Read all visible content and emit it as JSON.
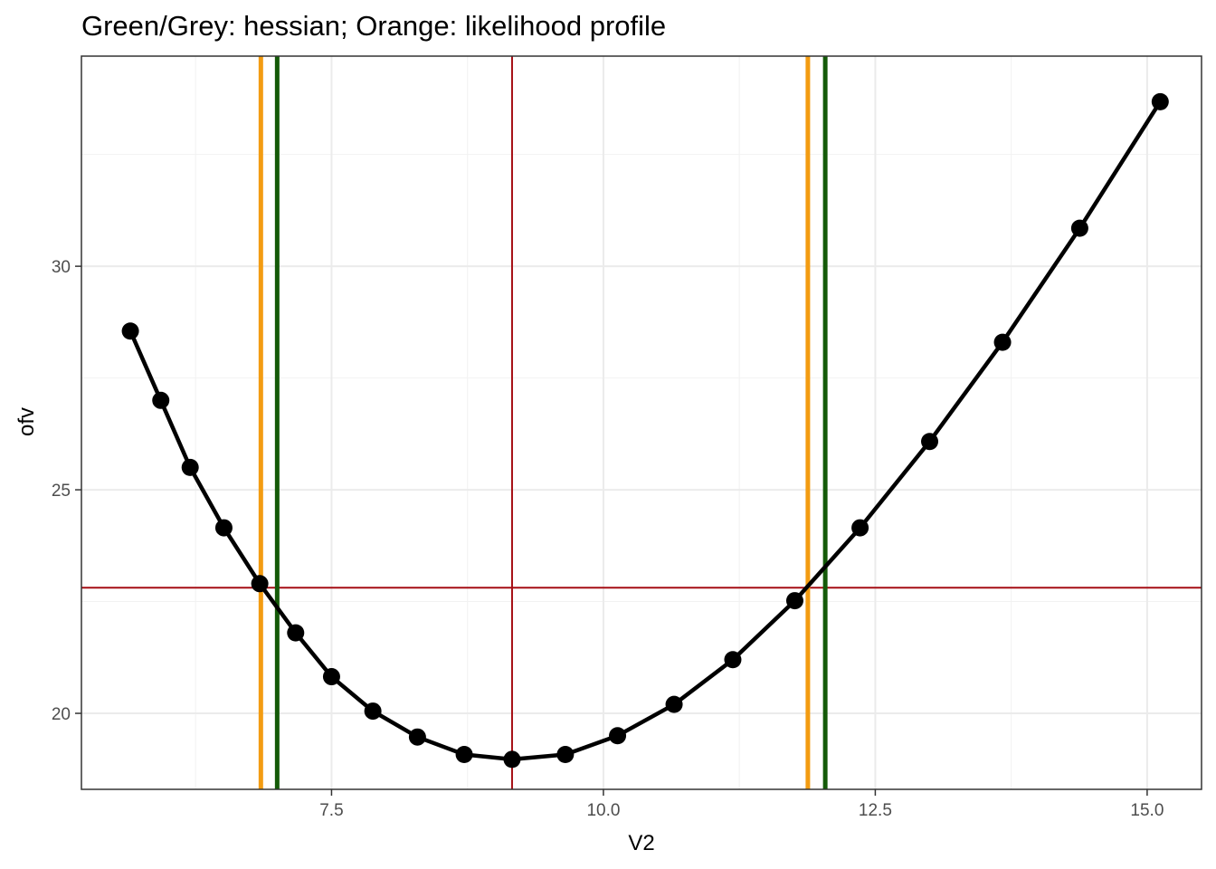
{
  "chart_data": {
    "type": "line",
    "title": "Green/Grey: hessian; Orange: likelihood profile",
    "xlabel": "V2",
    "ylabel": "ofv",
    "xlim": [
      5.2,
      15.5
    ],
    "ylim": [
      18.3,
      34.7
    ],
    "x_ticks": [
      7.5,
      10.0,
      12.5,
      15.0
    ],
    "x_tick_labels": [
      "7.5",
      "10.0",
      "12.5",
      "15.0"
    ],
    "y_ticks": [
      20,
      25,
      30
    ],
    "y_tick_labels": [
      "20",
      "25",
      "30"
    ],
    "grid": true,
    "legend": "none",
    "series": [
      {
        "x": [
          5.65,
          5.93,
          6.2,
          6.51,
          6.84,
          7.17,
          7.5,
          7.88,
          8.29,
          8.72,
          9.16,
          9.65,
          10.13,
          10.65,
          11.19,
          11.76,
          12.36,
          13.0,
          13.67,
          14.38,
          15.12
        ],
        "y": [
          28.55,
          27.0,
          25.5,
          24.15,
          22.9,
          21.8,
          20.82,
          20.05,
          19.47,
          19.08,
          18.97,
          19.08,
          19.5,
          20.2,
          21.2,
          22.52,
          24.15,
          26.08,
          28.3,
          30.85,
          33.68
        ],
        "color": "#000000"
      }
    ],
    "vlines": [
      {
        "x": 9.16,
        "color": "#a50f15",
        "role": "estimate"
      },
      {
        "x": 6.85,
        "color": "#f39c12",
        "role": "likelihood profile lower"
      },
      {
        "x": 11.88,
        "color": "#f39c12",
        "role": "likelihood profile upper"
      },
      {
        "x": 7.0,
        "color": "#145a08",
        "role": "hessian lower"
      },
      {
        "x": 12.04,
        "color": "#145a08",
        "role": "hessian upper"
      }
    ],
    "hlines": [
      {
        "y": 22.81,
        "color": "#a50f15",
        "role": "threshold"
      }
    ]
  }
}
